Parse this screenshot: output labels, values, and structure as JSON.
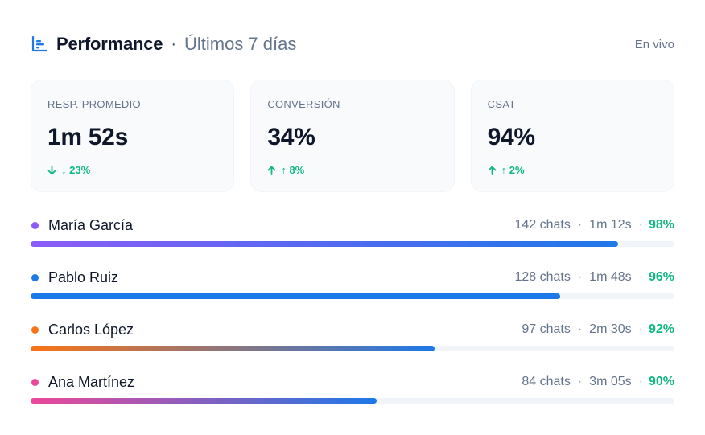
{
  "header": {
    "title": "Performance",
    "separator": "·",
    "subtitle": "Últimos 7 días",
    "live_label": "En vivo",
    "icon": "bar-chart-icon",
    "accent": "#1d78e8"
  },
  "metrics": [
    {
      "label": "Resp. promedio",
      "value": "1m 52s",
      "delta": "↓ 23%",
      "direction": "down",
      "color": "#10b981"
    },
    {
      "label": "Conversión",
      "value": "34%",
      "delta": "↑ 8%",
      "direction": "up",
      "color": "#10b981"
    },
    {
      "label": "CSAT",
      "value": "94%",
      "delta": "↑ 2%",
      "direction": "up",
      "color": "#10b981"
    }
  ],
  "agents": [
    {
      "name": "María García",
      "chats": "142 chats",
      "time": "1m 12s",
      "score": "98%",
      "progress": 0.913,
      "dot_color": "#8b5cf6",
      "gradient": [
        "#8b5cf6",
        "#1d78e8"
      ]
    },
    {
      "name": "Pablo Ruiz",
      "chats": "128 chats",
      "time": "1m 48s",
      "score": "96%",
      "progress": 0.823,
      "dot_color": "#1d78e8",
      "gradient": [
        "#1d78e8",
        "#1d78e8"
      ]
    },
    {
      "name": "Carlos López",
      "chats": "97 chats",
      "time": "2m 30s",
      "score": "92%",
      "progress": 0.628,
      "dot_color": "#f97316",
      "gradient": [
        "#f97316",
        "#1d78e8"
      ]
    },
    {
      "name": "Ana Martínez",
      "chats": "84 chats",
      "time": "3m 05s",
      "score": "90%",
      "progress": 0.538,
      "dot_color": "#ec4899",
      "gradient": [
        "#ec4899",
        "#1d78e8"
      ]
    }
  ]
}
